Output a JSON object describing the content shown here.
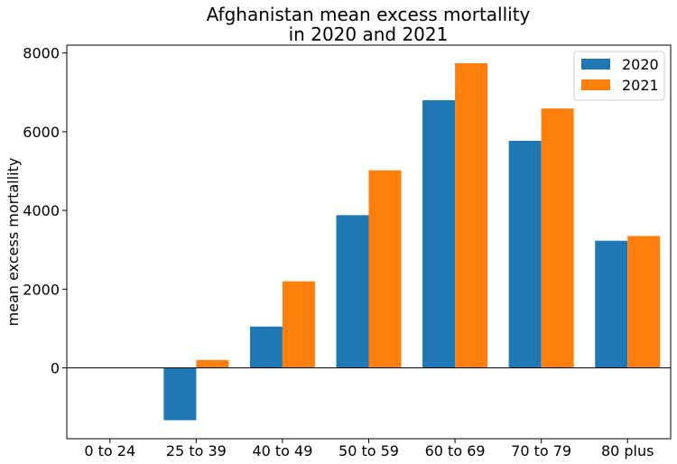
{
  "chart_data": {
    "type": "bar",
    "title": "Afghanistan mean excess mortallity\nin 2020 and 2021",
    "xlabel": "",
    "ylabel": "mean excess mortallity",
    "categories": [
      "0 to 24",
      "25 to 39",
      "40 to 49",
      "50 to 59",
      "60 to 69",
      "70 to 79",
      "80 plus"
    ],
    "series": [
      {
        "name": "2020",
        "color": "#1f77b4",
        "values": [
          0,
          -1330,
          1050,
          3880,
          6800,
          5770,
          3230
        ]
      },
      {
        "name": "2021",
        "color": "#ff7f0e",
        "values": [
          0,
          200,
          2200,
          5020,
          7740,
          6590,
          3350
        ]
      }
    ],
    "ylim": [
      -1800,
      8200
    ],
    "yticks": [
      0,
      2000,
      4000,
      6000,
      8000
    ],
    "zero_line": true,
    "grid": false,
    "legend": "top-right"
  }
}
